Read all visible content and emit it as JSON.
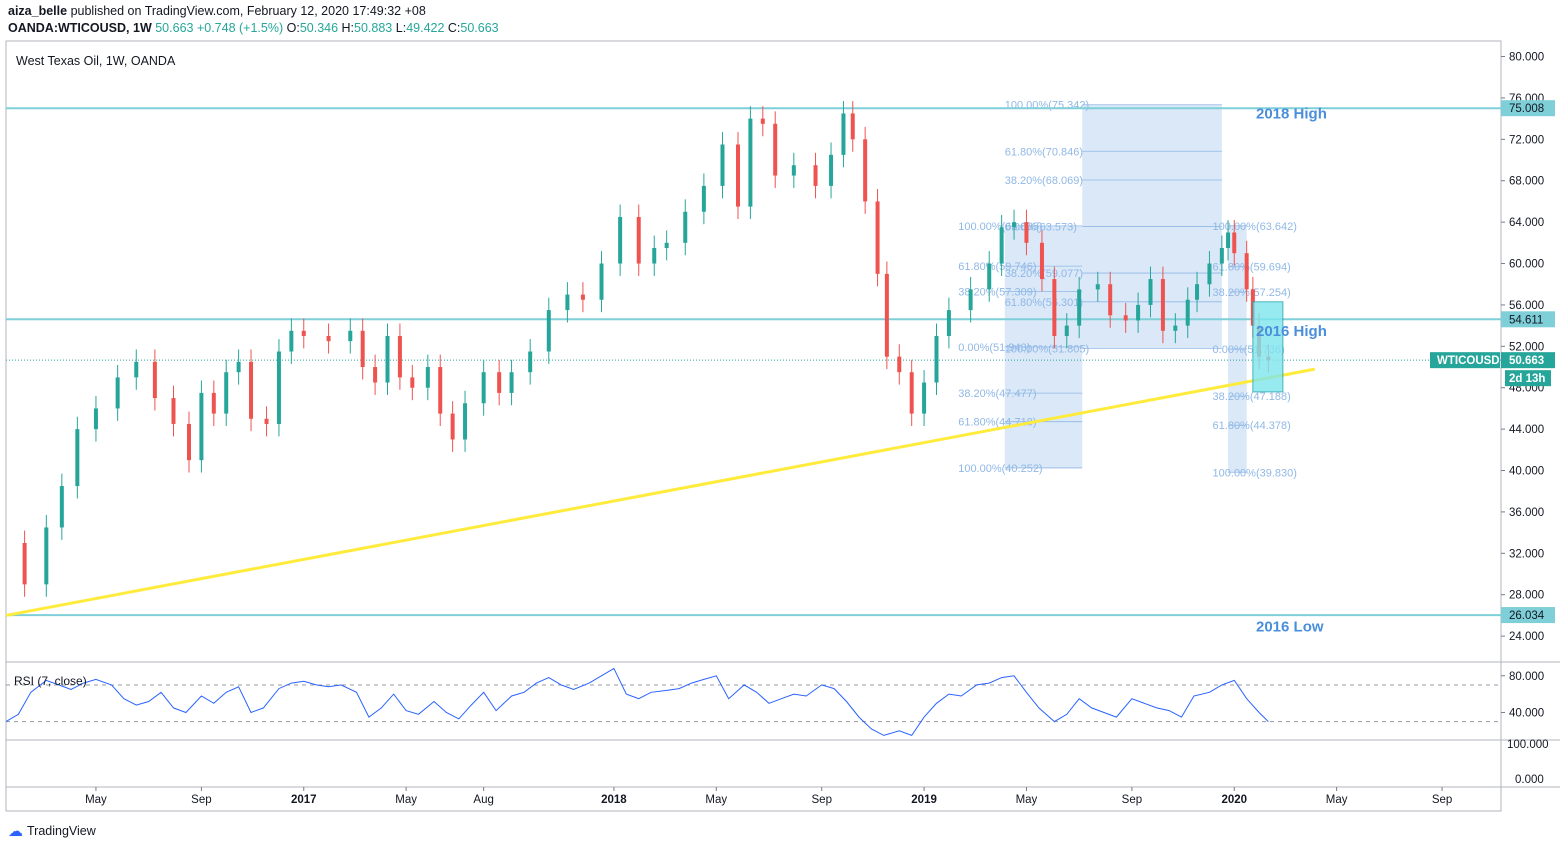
{
  "header": {
    "publisher": "aiza_belle",
    "published_text": "published on TradingView.com, February 12, 2020 17:49:32 +08",
    "symbol": "OANDA:WTICOUSD, 1W",
    "last": "50.663",
    "change": "+0.748 (+1.5%)",
    "open_label": "O:",
    "open": "50.346",
    "high_label": "H:",
    "high": "50.883",
    "low_label": "L:",
    "low": "49.422",
    "close_label": "C:",
    "close": "50.663"
  },
  "colors": {
    "up": "#26a69a",
    "down": "#ef5350",
    "level_line": "#7ecfd8",
    "trendline": "#ffeb3b",
    "fib_box": "#bcd6f2",
    "fib_text": "#90b8e6",
    "annotation": "#4a8fdb",
    "rsi": "#2962ff",
    "price_tag": "#26a69a"
  },
  "chart_data": [
    {
      "type": "candlestick",
      "title": "West Texas Oil, 1W, OANDA",
      "y_axis_ticks": [
        "80.000",
        "76.000",
        "72.000",
        "68.000",
        "64.000",
        "60.000",
        "56.000",
        "52.000",
        "48.000",
        "44.000",
        "40.000",
        "36.000",
        "32.000",
        "28.000",
        "24.000"
      ],
      "ylim": [
        21.5,
        81.5
      ],
      "x_axis_ticks": [
        {
          "label": "May",
          "t": 2016.33
        },
        {
          "label": "Sep",
          "t": 2016.67
        },
        {
          "label": "2017",
          "t": 2017.0
        },
        {
          "label": "May",
          "t": 2017.33
        },
        {
          "label": "Aug",
          "t": 2017.58
        },
        {
          "label": "2018",
          "t": 2018.0
        },
        {
          "label": "May",
          "t": 2018.33
        },
        {
          "label": "Sep",
          "t": 2018.67
        },
        {
          "label": "2019",
          "t": 2019.0
        },
        {
          "label": "May",
          "t": 2019.33
        },
        {
          "label": "Sep",
          "t": 2019.67
        },
        {
          "label": "2020",
          "t": 2020.0
        },
        {
          "label": "May",
          "t": 2020.33
        },
        {
          "label": "Sep",
          "t": 2020.67
        }
      ],
      "xlim": [
        2016.04,
        2020.86
      ],
      "close_series": [
        {
          "t": 2016.04,
          "c": 33.0
        },
        {
          "t": 2016.1,
          "c": 29.0
        },
        {
          "t": 2016.17,
          "c": 34.5
        },
        {
          "t": 2016.22,
          "c": 38.5
        },
        {
          "t": 2016.27,
          "c": 44.0
        },
        {
          "t": 2016.33,
          "c": 46.0
        },
        {
          "t": 2016.4,
          "c": 49.0
        },
        {
          "t": 2016.46,
          "c": 50.5
        },
        {
          "t": 2016.52,
          "c": 47.0
        },
        {
          "t": 2016.58,
          "c": 44.5
        },
        {
          "t": 2016.63,
          "c": 41.0
        },
        {
          "t": 2016.67,
          "c": 47.5
        },
        {
          "t": 2016.71,
          "c": 45.5
        },
        {
          "t": 2016.75,
          "c": 49.5
        },
        {
          "t": 2016.79,
          "c": 50.5
        },
        {
          "t": 2016.83,
          "c": 45.0
        },
        {
          "t": 2016.88,
          "c": 44.5
        },
        {
          "t": 2016.92,
          "c": 51.5
        },
        {
          "t": 2016.96,
          "c": 53.5
        },
        {
          "t": 2017.0,
          "c": 53.0
        },
        {
          "t": 2017.08,
          "c": 52.5
        },
        {
          "t": 2017.15,
          "c": 53.5
        },
        {
          "t": 2017.19,
          "c": 50.0
        },
        {
          "t": 2017.23,
          "c": 48.5
        },
        {
          "t": 2017.27,
          "c": 53.0
        },
        {
          "t": 2017.31,
          "c": 49.0
        },
        {
          "t": 2017.35,
          "c": 48.0
        },
        {
          "t": 2017.4,
          "c": 50.0
        },
        {
          "t": 2017.44,
          "c": 45.5
        },
        {
          "t": 2017.48,
          "c": 43.0
        },
        {
          "t": 2017.52,
          "c": 46.5
        },
        {
          "t": 2017.58,
          "c": 49.5
        },
        {
          "t": 2017.63,
          "c": 47.5
        },
        {
          "t": 2017.67,
          "c": 49.5
        },
        {
          "t": 2017.73,
          "c": 51.5
        },
        {
          "t": 2017.79,
          "c": 55.5
        },
        {
          "t": 2017.85,
          "c": 57.0
        },
        {
          "t": 2017.9,
          "c": 56.5
        },
        {
          "t": 2017.96,
          "c": 60.0
        },
        {
          "t": 2018.02,
          "c": 64.5
        },
        {
          "t": 2018.08,
          "c": 60.0
        },
        {
          "t": 2018.13,
          "c": 61.5
        },
        {
          "t": 2018.17,
          "c": 62.0
        },
        {
          "t": 2018.23,
          "c": 65.0
        },
        {
          "t": 2018.29,
          "c": 67.5
        },
        {
          "t": 2018.35,
          "c": 71.5
        },
        {
          "t": 2018.4,
          "c": 65.5
        },
        {
          "t": 2018.44,
          "c": 74.0
        },
        {
          "t": 2018.48,
          "c": 73.5
        },
        {
          "t": 2018.52,
          "c": 68.5
        },
        {
          "t": 2018.58,
          "c": 69.5
        },
        {
          "t": 2018.65,
          "c": 67.5
        },
        {
          "t": 2018.7,
          "c": 70.5
        },
        {
          "t": 2018.74,
          "c": 74.5
        },
        {
          "t": 2018.77,
          "c": 72.0
        },
        {
          "t": 2018.81,
          "c": 66.0
        },
        {
          "t": 2018.85,
          "c": 59.0
        },
        {
          "t": 2018.88,
          "c": 51.0
        },
        {
          "t": 2018.92,
          "c": 49.5
        },
        {
          "t": 2018.96,
          "c": 45.5
        },
        {
          "t": 2019.0,
          "c": 48.5
        },
        {
          "t": 2019.04,
          "c": 53.0
        },
        {
          "t": 2019.08,
          "c": 55.5
        },
        {
          "t": 2019.15,
          "c": 57.5
        },
        {
          "t": 2019.21,
          "c": 60.0
        },
        {
          "t": 2019.25,
          "c": 63.5
        },
        {
          "t": 2019.29,
          "c": 64.0
        },
        {
          "t": 2019.33,
          "c": 62.0
        },
        {
          "t": 2019.38,
          "c": 58.5
        },
        {
          "t": 2019.42,
          "c": 53.0
        },
        {
          "t": 2019.46,
          "c": 54.0
        },
        {
          "t": 2019.5,
          "c": 57.5
        },
        {
          "t": 2019.56,
          "c": 58.0
        },
        {
          "t": 2019.6,
          "c": 55.0
        },
        {
          "t": 2019.65,
          "c": 54.5
        },
        {
          "t": 2019.69,
          "c": 56.0
        },
        {
          "t": 2019.73,
          "c": 58.5
        },
        {
          "t": 2019.77,
          "c": 53.5
        },
        {
          "t": 2019.81,
          "c": 54.0
        },
        {
          "t": 2019.85,
          "c": 56.5
        },
        {
          "t": 2019.88,
          "c": 58.0
        },
        {
          "t": 2019.92,
          "c": 60.0
        },
        {
          "t": 2019.96,
          "c": 61.5
        },
        {
          "t": 2019.98,
          "c": 63.0
        },
        {
          "t": 2020.0,
          "c": 61.0
        },
        {
          "t": 2020.04,
          "c": 57.5
        },
        {
          "t": 2020.06,
          "c": 54.0
        },
        {
          "t": 2020.08,
          "c": 51.0
        },
        {
          "t": 2020.11,
          "c": 50.663
        }
      ],
      "horizontal_levels": [
        {
          "value": 75.008,
          "label": "75.008"
        },
        {
          "value": 54.611,
          "label": "54.611"
        },
        {
          "value": 26.034,
          "label": "26.034"
        }
      ],
      "annotations": [
        "2018 High",
        "2016 High",
        "2016 Low"
      ],
      "current_price": {
        "symbol": "WTICOUSD",
        "value": "50.663",
        "countdown": "2d 13h"
      },
      "trendline": {
        "from": {
          "t": 2016.04,
          "v": 26.0
        },
        "to": {
          "t": 2020.26,
          "v": 49.8
        }
      },
      "fib_groups": [
        {
          "levels": [
            "100.00%(63.635)",
            "61.80%(59.746)",
            "38.20%(57.309)",
            "0.00%(51.943)",
            "38.20%(47.477)",
            "61.80%(44.718)",
            "100.00%(40.252)"
          ]
        },
        {
          "levels": [
            "100.00%(75.342)",
            "61.80%(70.846)",
            "38.20%(68.069)",
            "0.00%(63.573)",
            "38.20%(59.077)",
            "61.80%(56.301)",
            "100.00%(51.805)"
          ]
        },
        {
          "levels": [
            "100.00%(63.642)",
            "61.80%(59.694)",
            "38.20%(57.254)",
            "0.00%(51.736)",
            "38.20%(47.188)",
            "61.80%(44.378)",
            "100.00%(39.830)"
          ]
        }
      ]
    },
    {
      "type": "line",
      "title": "RSI (7, close)",
      "y_axis_ticks": [
        "80.000",
        "40.000"
      ],
      "ylim": [
        10,
        95
      ],
      "reference_lines": [
        70,
        30
      ],
      "x": [
        2016.04,
        2016.08,
        2016.12,
        2016.17,
        2016.21,
        2016.25,
        2016.29,
        2016.33,
        2016.38,
        2016.42,
        2016.46,
        2016.5,
        2016.54,
        2016.58,
        2016.62,
        2016.67,
        2016.71,
        2016.75,
        2016.79,
        2016.83,
        2016.87,
        2016.92,
        2016.96,
        2017.0,
        2017.04,
        2017.08,
        2017.12,
        2017.17,
        2017.21,
        2017.25,
        2017.29,
        2017.33,
        2017.37,
        2017.42,
        2017.46,
        2017.5,
        2017.54,
        2017.58,
        2017.62,
        2017.67,
        2017.71,
        2017.75,
        2017.79,
        2017.83,
        2017.87,
        2017.92,
        2017.96,
        2018.0,
        2018.04,
        2018.08,
        2018.12,
        2018.17,
        2018.21,
        2018.25,
        2018.29,
        2018.33,
        2018.37,
        2018.42,
        2018.46,
        2018.5,
        2018.54,
        2018.58,
        2018.62,
        2018.67,
        2018.71,
        2018.75,
        2018.79,
        2018.83,
        2018.87,
        2018.92,
        2018.96,
        2019.0,
        2019.04,
        2019.08,
        2019.12,
        2019.17,
        2019.21,
        2019.25,
        2019.29,
        2019.33,
        2019.37,
        2019.42,
        2019.46,
        2019.5,
        2019.54,
        2019.58,
        2019.62,
        2019.67,
        2019.71,
        2019.75,
        2019.79,
        2019.83,
        2019.87,
        2019.92,
        2019.96,
        2020.0,
        2020.04,
        2020.08,
        2020.11
      ],
      "values": [
        30,
        38,
        62,
        75,
        70,
        65,
        72,
        76,
        70,
        55,
        48,
        52,
        62,
        45,
        40,
        58,
        50,
        62,
        68,
        40,
        45,
        66,
        72,
        74,
        70,
        68,
        70,
        62,
        35,
        45,
        60,
        42,
        38,
        52,
        40,
        33,
        48,
        62,
        42,
        58,
        62,
        72,
        78,
        70,
        65,
        72,
        80,
        88,
        60,
        55,
        62,
        64,
        66,
        72,
        76,
        80,
        55,
        70,
        62,
        50,
        55,
        60,
        58,
        70,
        66,
        52,
        35,
        22,
        15,
        20,
        15,
        35,
        50,
        60,
        58,
        70,
        72,
        78,
        80,
        62,
        45,
        30,
        38,
        55,
        45,
        40,
        35,
        55,
        50,
        45,
        42,
        35,
        58,
        62,
        70,
        75,
        55,
        40,
        30
      ]
    }
  ],
  "bottom_axis": {
    "ticks": [
      "100.000",
      "0.000"
    ]
  },
  "footer": {
    "brand": "TradingView"
  }
}
